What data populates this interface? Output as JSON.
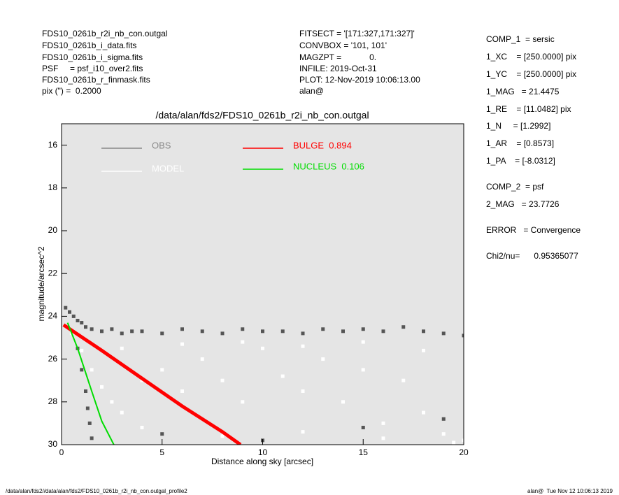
{
  "header": {
    "left": [
      "FDS10_0261b_r2i_nb_con.outgal",
      "FDS10_0261b_i_data.fits",
      "FDS10_0261b_i_sigma.fits",
      "PSF     = psf_i10_over2.fits",
      "FDS10_0261b_r_finmask.fits",
      "pix (\") =  0.2000"
    ],
    "middle": [
      "FITSECT = '[171:327,171:327]'",
      "CONVBOX = '101, 101'",
      "MAGZPT =            0.",
      "INFILE: 2019-Oct-31",
      "PLOT: 12-Nov-2019 10:06:13.00",
      "alan@"
    ],
    "right": [
      "COMP_1  = sersic",
      "1_XC    = [250.0000] pix",
      "1_YC    = [250.0000] pix",
      "1_MAG   = 21.4475",
      "1_RE    = [11.0482] pix",
      "1_N     = [1.2992]",
      "1_AR    = [0.8573]",
      "1_PA    = [-8.0312]",
      "COMP_2  = psf",
      "2_MAG   = 23.7726",
      "ERROR   = Convergence",
      "Chi2/nu=      0.95365077"
    ]
  },
  "footer": {
    "left": "/data/alan/fds2//data/alan/fds2/FDS10_0261b_r2i_nb_con.outgal_profile2",
    "right": "alan@  Tue Nov 12 10:06:13 2019"
  },
  "chart_data": {
    "type": "scatter",
    "title": "/data/alan/fds2/FDS10_0261b_r2i_nb_con.outgal",
    "x_label": "Distance along sky [arcsec]",
    "y_label": "magnitude/arcsec^2",
    "xlim": [
      0,
      20
    ],
    "xticks": [
      0,
      5,
      10,
      15,
      20
    ],
    "ylim": [
      30,
      15
    ],
    "yticks": [
      16,
      18,
      20,
      22,
      24,
      26,
      28,
      30
    ],
    "background": "#e5e5e5",
    "series": [
      {
        "name": "OBS",
        "type": "scatter",
        "color": "#555555",
        "x": [
          0.2,
          0.4,
          0.6,
          0.8,
          1.0,
          1.2,
          1.5,
          2,
          2.5,
          3,
          3.5,
          4,
          5,
          6,
          7,
          8,
          9,
          10,
          11,
          12,
          13,
          14,
          15,
          16,
          17,
          18,
          19,
          20,
          0.8,
          1.0,
          1.2,
          1.3,
          1.4,
          1.5,
          5,
          10,
          15,
          19
        ],
        "values": [
          23.6,
          23.8,
          24.0,
          24.2,
          24.3,
          24.5,
          24.6,
          24.7,
          24.6,
          24.8,
          24.7,
          24.7,
          24.8,
          24.6,
          24.7,
          24.8,
          24.6,
          24.7,
          24.7,
          24.8,
          24.6,
          24.7,
          24.6,
          24.7,
          24.5,
          24.7,
          24.8,
          24.9,
          25.5,
          26.5,
          27.5,
          28.3,
          29.0,
          29.7,
          29.5,
          29.8,
          29.2,
          28.8
        ]
      },
      {
        "name": "MODEL",
        "type": "scatter",
        "color": "#ffffff",
        "x": [
          0.5,
          1,
          1.5,
          2,
          2.5,
          3,
          4,
          5,
          6,
          7,
          8,
          9,
          10,
          11,
          12,
          13,
          14,
          15,
          16,
          17,
          18,
          19,
          20,
          3,
          6,
          9,
          12,
          15,
          18,
          4,
          8,
          12,
          16,
          19.5
        ],
        "values": [
          24.8,
          25.6,
          26.5,
          27.3,
          28.0,
          28.5,
          27,
          26.5,
          27.5,
          26,
          27,
          28,
          25.5,
          26.8,
          27.5,
          26,
          28,
          26.5,
          29,
          27,
          28.5,
          29.5,
          29.8,
          25.5,
          25.3,
          25.2,
          25.4,
          25.2,
          25.6,
          29.2,
          29.6,
          29.4,
          29.7,
          29.9
        ]
      },
      {
        "name": "BULGE  0.894",
        "type": "line",
        "color": "#ff0000",
        "x": [
          0.1,
          2,
          4,
          6,
          8,
          8.9
        ],
        "values": [
          24.4,
          25.6,
          26.9,
          28.2,
          29.4,
          30
        ]
      },
      {
        "name": "NUCLEUS  0.106",
        "type": "line",
        "color": "#00dd00",
        "x": [
          0.3,
          0.8,
          1.5,
          2,
          2.6
        ],
        "values": [
          24.3,
          25.5,
          27.5,
          28.9,
          30
        ]
      }
    ]
  }
}
